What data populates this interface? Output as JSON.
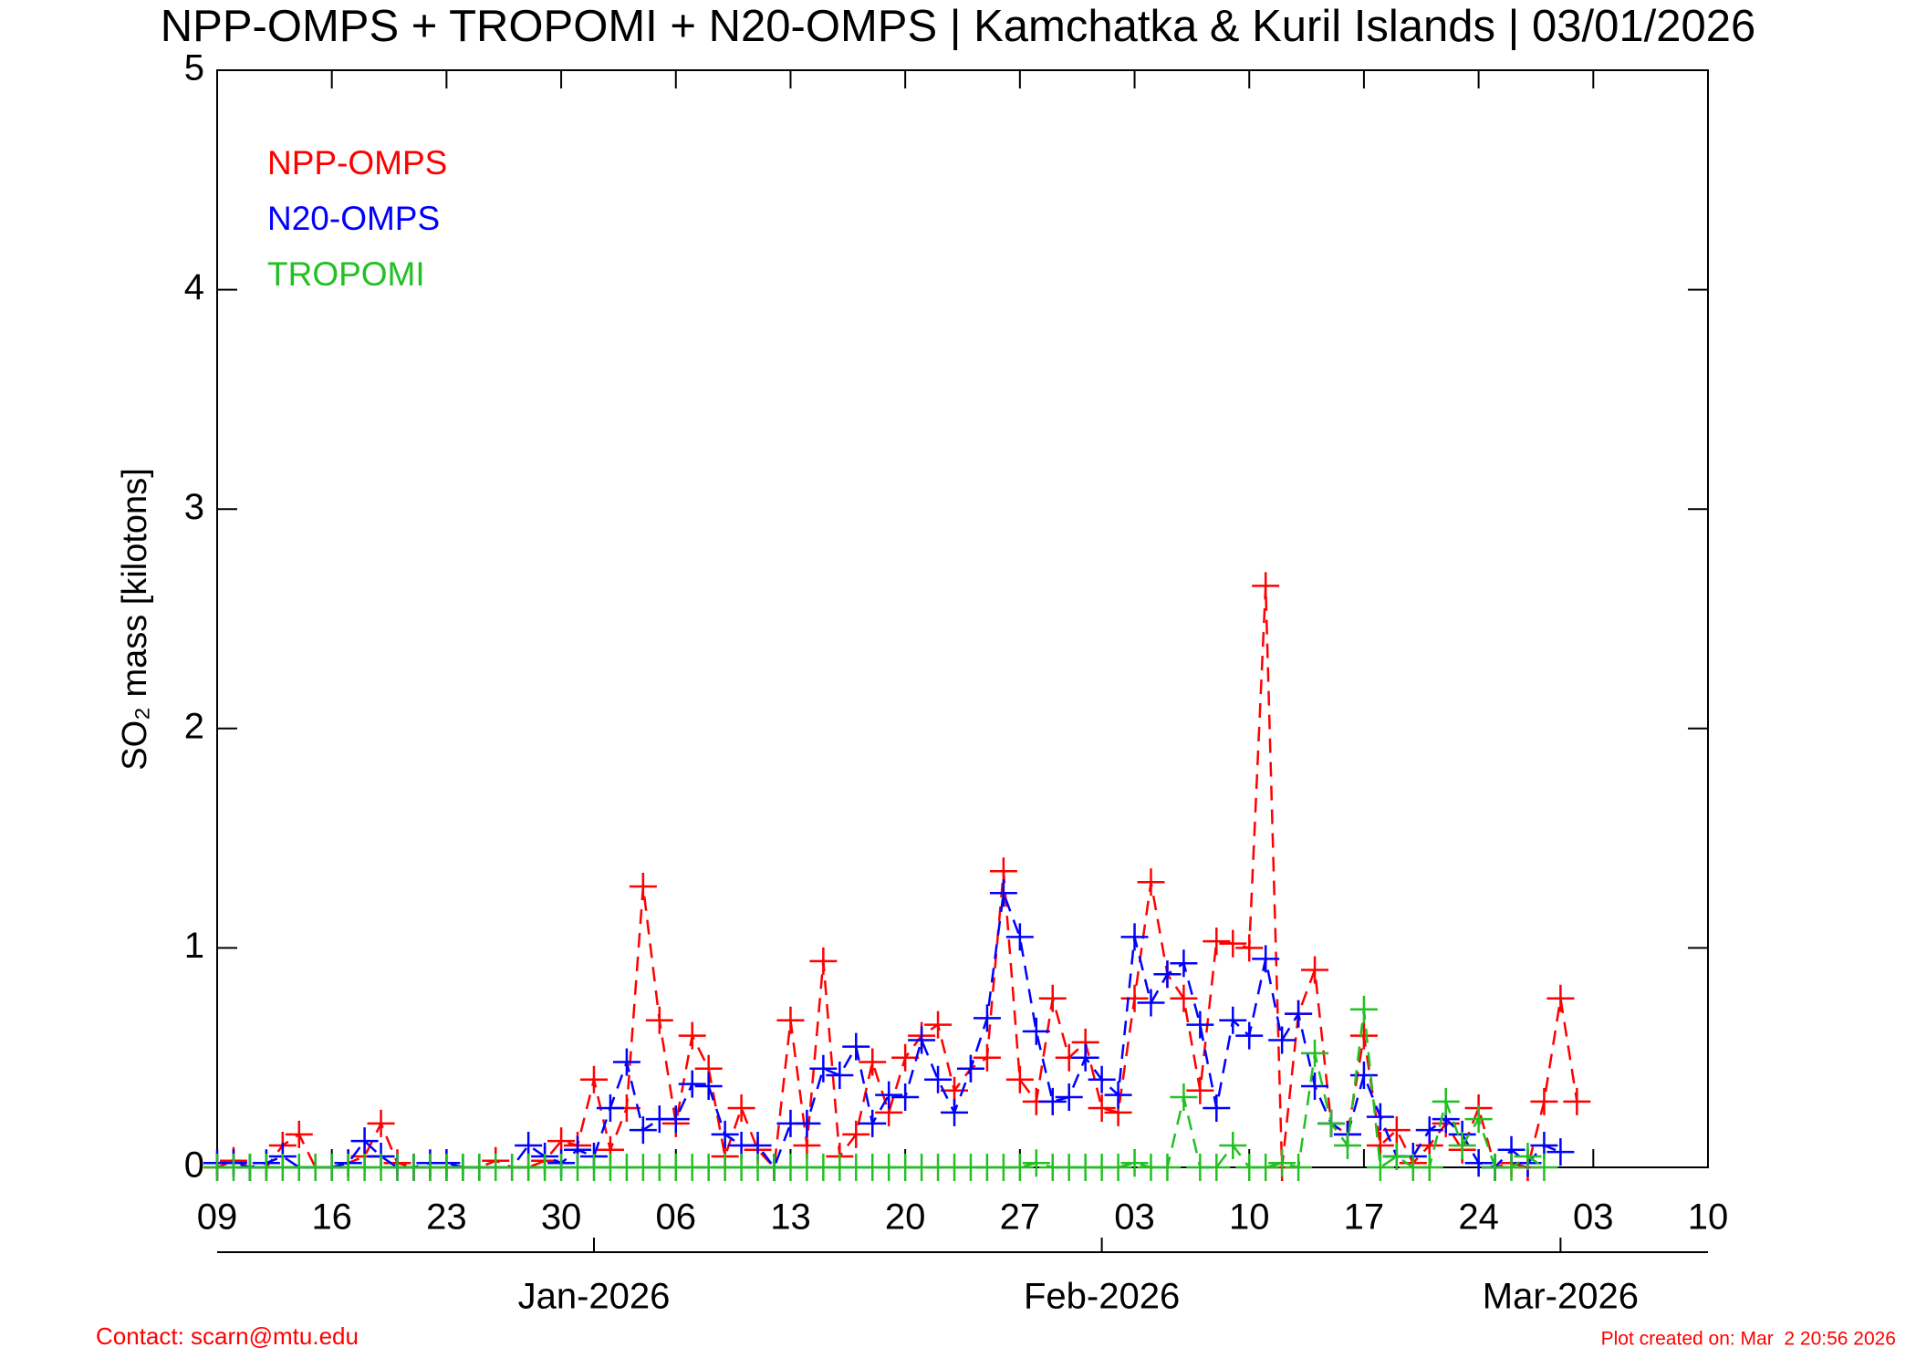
{
  "chart_data": {
    "type": "line",
    "title": "NPP-OMPS + TROPOMI + N20-OMPS | Kamchatka & Kuril Islands | 03/01/2026",
    "y_label": "SO₂ mass [kilotons]",
    "x": [
      0,
      1,
      2,
      3,
      4,
      5,
      6,
      7,
      8,
      9,
      10,
      11,
      12,
      13,
      14,
      15,
      16,
      17,
      18,
      19,
      20,
      21,
      22,
      23,
      24,
      25,
      26,
      27,
      28,
      29,
      30,
      31,
      32,
      33,
      34,
      35,
      36,
      37,
      38,
      39,
      40,
      41,
      42,
      43,
      44,
      45,
      46,
      47,
      48,
      49,
      50,
      51,
      52,
      53,
      54,
      55,
      56,
      57,
      58,
      59,
      60,
      61,
      62,
      63,
      64,
      65,
      66,
      67,
      68,
      69,
      70,
      71,
      72,
      73,
      74,
      75,
      76,
      77,
      78,
      79,
      80,
      81,
      82,
      83
    ],
    "xlim": [
      0,
      91
    ],
    "xticks": [
      {
        "value": 0,
        "label": "09"
      },
      {
        "value": 7,
        "label": "16"
      },
      {
        "value": 14,
        "label": "23"
      },
      {
        "value": 21,
        "label": "30"
      },
      {
        "value": 28,
        "label": "06"
      },
      {
        "value": 35,
        "label": "13"
      },
      {
        "value": 42,
        "label": "20"
      },
      {
        "value": 49,
        "label": "27"
      },
      {
        "value": 56,
        "label": "03"
      },
      {
        "value": 63,
        "label": "10"
      },
      {
        "value": 70,
        "label": "17"
      },
      {
        "value": 77,
        "label": "24"
      },
      {
        "value": 84,
        "label": "03"
      },
      {
        "value": 91,
        "label": "10"
      }
    ],
    "month_ticks": [
      {
        "value": 23,
        "label": "Jan-2026"
      },
      {
        "value": 54,
        "label": "Feb-2026"
      },
      {
        "value": 82,
        "label": "Mar-2026"
      }
    ],
    "ylim": [
      0,
      5
    ],
    "yticks": [
      0,
      1,
      2,
      3,
      4,
      5
    ],
    "series": [
      {
        "name": "NPP-OMPS",
        "color": "#ff0000",
        "values": [
          0,
          0.03,
          0,
          0,
          0.1,
          0.15,
          0,
          0,
          0.02,
          0.05,
          0.2,
          0.02,
          0,
          0,
          0,
          0,
          0,
          0.03,
          0,
          0,
          0.03,
          0.12,
          0.1,
          0.4,
          0.08,
          0.27,
          1.28,
          0.67,
          0.2,
          0.6,
          0.45,
          0.05,
          0.27,
          0.08,
          0,
          0.67,
          0.1,
          0.94,
          0.05,
          0.15,
          0.48,
          0.25,
          0.5,
          0.6,
          0.65,
          0.35,
          0.45,
          0.5,
          1.35,
          0.4,
          0.3,
          0.77,
          0.5,
          0.57,
          0.27,
          0.25,
          0.77,
          1.3,
          0.88,
          0.77,
          0.35,
          1.03,
          1.02,
          1,
          2.65,
          0,
          0.7,
          0.9,
          0.2,
          0.15,
          0.6,
          0.1,
          0.17,
          0.02,
          0.1,
          0.2,
          0.08,
          0.27,
          0,
          0.02,
          0,
          0.3,
          0.77,
          0.3
        ]
      },
      {
        "name": "N20-OMPS",
        "color": "#0000ff",
        "values": [
          0.02,
          0.02,
          0,
          0.02,
          0.05,
          0,
          0,
          0,
          0.02,
          0.12,
          0.05,
          0,
          0,
          0.02,
          0.02,
          0,
          0,
          0,
          0,
          0.1,
          0.05,
          0.02,
          0.08,
          0.05,
          0.27,
          0.48,
          0.17,
          0.22,
          0.22,
          0.38,
          0.37,
          0.15,
          0.1,
          0.1,
          0,
          0.2,
          0.2,
          0.45,
          0.42,
          0.55,
          0.2,
          0.33,
          0.32,
          0.58,
          0.4,
          0.25,
          0.45,
          0.68,
          1.25,
          1.05,
          0.62,
          0.3,
          0.32,
          0.5,
          0.4,
          0.33,
          1.05,
          0.75,
          0.88,
          0.93,
          0.65,
          0.27,
          0.67,
          0.6,
          0.95,
          0.58,
          0.7,
          0.37,
          0.2,
          0.15,
          0.42,
          0.23,
          0.05,
          0.05,
          0.17,
          0.22,
          0.15,
          0.02,
          0,
          0.08,
          0.02,
          0.1,
          0.07,
          null
        ]
      },
      {
        "name": "TROPOMI",
        "color": "#22c022",
        "values": [
          0,
          0,
          0,
          0,
          0,
          0,
          0,
          0,
          0,
          0,
          0,
          0,
          0,
          0,
          0,
          0,
          0,
          0,
          0,
          0,
          0,
          0,
          0,
          0,
          0,
          0,
          0,
          0,
          0,
          0,
          0,
          0,
          0,
          0,
          0,
          0,
          0,
          0,
          0,
          0,
          0,
          0,
          0,
          0,
          0,
          0,
          0,
          0,
          0,
          0,
          0.02,
          0,
          0,
          0,
          0,
          0,
          0.02,
          0,
          0,
          0.32,
          0,
          0,
          0.1,
          0,
          0,
          0.02,
          0,
          0.52,
          0.2,
          0.1,
          0.72,
          0,
          0.05,
          0,
          0,
          0.3,
          0.1,
          0.22,
          0,
          0,
          0.05,
          0,
          null,
          null
        ]
      }
    ],
    "contact": "Contact: scarn@mtu.edu",
    "created": "Plot created on: Mar  2 20:56 2026"
  }
}
